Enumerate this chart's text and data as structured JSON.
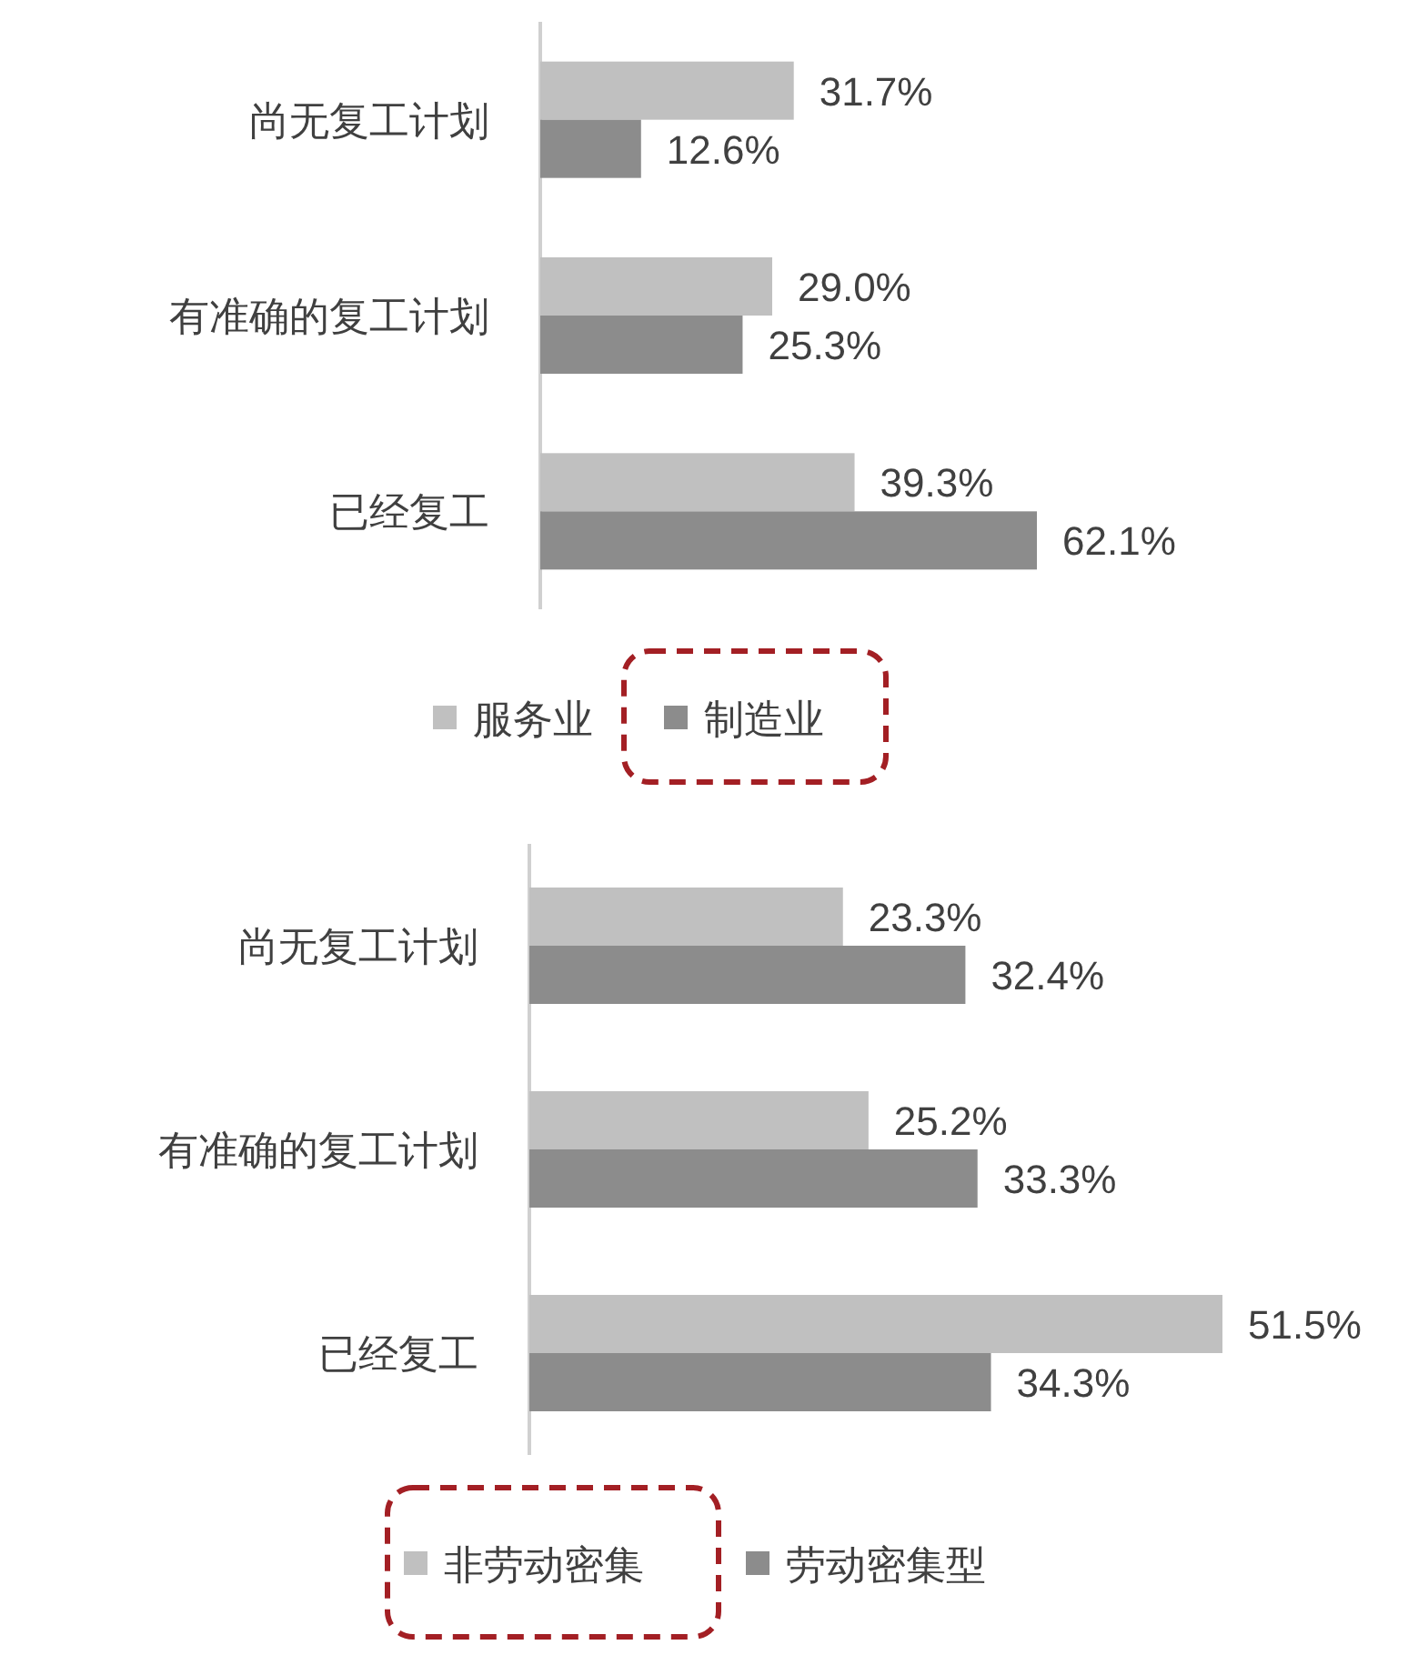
{
  "chart_data": [
    {
      "type": "bar",
      "orientation": "horizontal",
      "categories": [
        "尚无复工计划",
        "有准确的复工计划",
        "已经复工"
      ],
      "legend": "bottom",
      "series": [
        {
          "name": "服务业",
          "color": "#c0c0c0",
          "values": [
            31.7,
            29.0,
            39.3
          ],
          "value_labels": [
            "31.7%",
            "29.0%",
            "39.3%"
          ]
        },
        {
          "name": "制造业",
          "color": "#8c8c8c",
          "values": [
            12.6,
            25.3,
            62.1
          ],
          "value_labels": [
            "12.6%",
            "25.3%",
            "62.1%"
          ]
        }
      ]
    },
    {
      "type": "bar",
      "orientation": "horizontal",
      "categories": [
        "尚无复工计划",
        "有准确的复工计划",
        "已经复工"
      ],
      "legend": "bottom",
      "series": [
        {
          "name": "非劳动密集",
          "color": "#c0c0c0",
          "values": [
            23.3,
            25.2,
            51.5
          ],
          "value_labels": [
            "23.3%",
            "25.2%",
            "51.5%"
          ]
        },
        {
          "name": "劳动密集型",
          "color": "#8c8c8c",
          "values": [
            32.4,
            33.3,
            34.3
          ],
          "value_labels": [
            "32.4%",
            "33.3%",
            "34.3%"
          ]
        }
      ]
    }
  ]
}
